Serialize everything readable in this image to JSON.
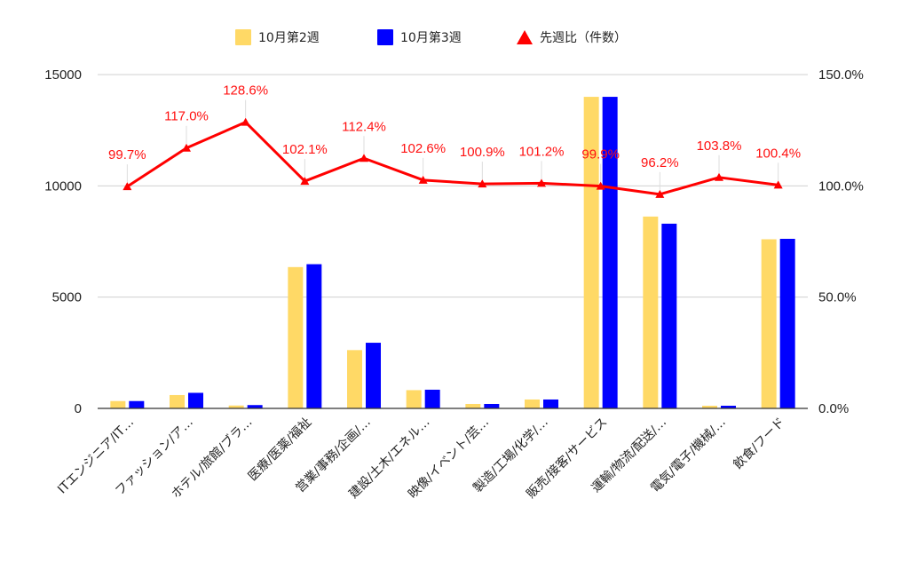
{
  "chart_data": {
    "type": "bar",
    "categories": [
      "ITエンジニア/IT…",
      "ファッション/ア…",
      "ホテル/旅館/ブラ…",
      "医療/医薬/福祉",
      "営業/事務/企画/…",
      "建設/土木/エネル…",
      "映像/イベント/芸…",
      "製造/工場/化学/…",
      "販売/接客/サービス",
      "運輸/物流/配送/…",
      "電気/電子/機械/…",
      "飲食/フード"
    ],
    "series": [
      {
        "name": "10月第2週",
        "type": "bar",
        "axis": "left",
        "color": "#ffd966",
        "values": [
          330,
          600,
          130,
          6350,
          2620,
          820,
          200,
          400,
          14000,
          8620,
          120,
          7600
        ]
      },
      {
        "name": "10月第3週",
        "type": "bar",
        "axis": "left",
        "color": "#0000ff",
        "values": [
          330,
          700,
          150,
          6480,
          2950,
          840,
          200,
          400,
          14000,
          8300,
          120,
          7620
        ]
      },
      {
        "name": "先週比（件数）",
        "type": "line",
        "axis": "right",
        "color": "#ff0000",
        "marker": "triangle",
        "values": [
          99.7,
          117.0,
          128.6,
          102.1,
          112.4,
          102.6,
          100.9,
          101.2,
          99.9,
          96.2,
          103.8,
          100.4
        ],
        "labels": [
          "99.7%",
          "117.0%",
          "128.6%",
          "102.1%",
          "112.4%",
          "102.6%",
          "100.9%",
          "101.2%",
          "99.9%",
          "96.2%",
          "103.8%",
          "100.4%"
        ]
      }
    ],
    "y_left": {
      "ticks": [
        0,
        5000,
        10000,
        15000
      ],
      "tick_labels": [
        "0",
        "5000",
        "10000",
        "15000"
      ],
      "min": 0,
      "max": 15000
    },
    "y_right": {
      "ticks": [
        0,
        50,
        100,
        150
      ],
      "tick_labels": [
        "0.0%",
        "50.0%",
        "100.0%",
        "150.0%"
      ],
      "min": 0,
      "max": 150
    },
    "grid": true,
    "legend_position": "top-center"
  }
}
